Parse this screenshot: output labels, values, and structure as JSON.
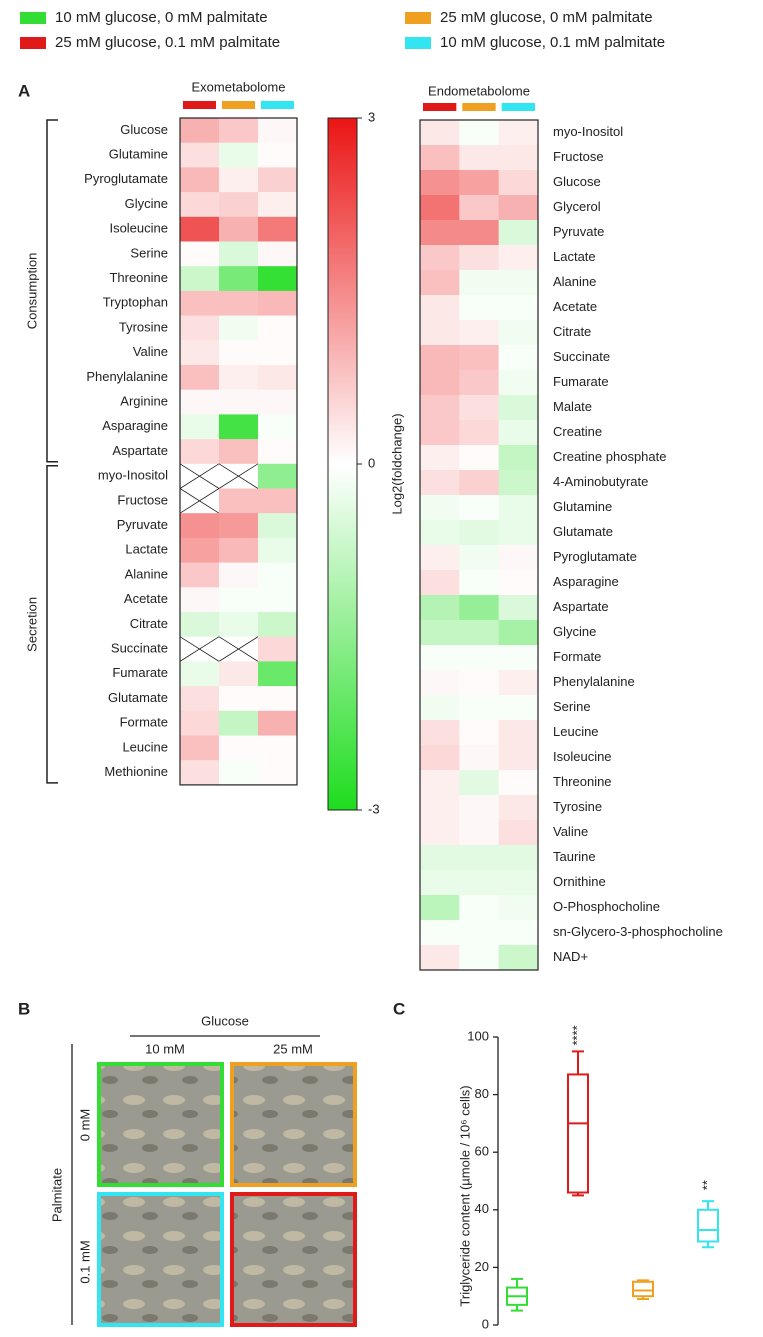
{
  "legend": [
    {
      "name": "10 mM glucose, 0 mM palmitate",
      "color": "#33dd33"
    },
    {
      "name": "25 mM glucose, 0.1 mM palmitate",
      "color": "#e01919"
    },
    {
      "name": "25 mM glucose, 0 mM palmitate",
      "color": "#f0a020"
    },
    {
      "name": "10 mM glucose, 0.1 mM palmitate",
      "color": "#33e5f0"
    }
  ],
  "panel_labels": [
    "A",
    "B",
    "C"
  ],
  "colorbar": {
    "label": "Log2(foldchange)",
    "lim": [
      -3,
      3
    ],
    "ticks": [
      3,
      0,
      -3
    ]
  },
  "chart_data": [
    {
      "type": "heatmap",
      "title": "Exometabolome",
      "column_colors": [
        "#e01919",
        "#f0a020",
        "#33e5f0"
      ],
      "groups": [
        {
          "name": "Consumption",
          "rows": [
            "Glucose",
            "Glutamine",
            "Pyroglutamate",
            "Glycine",
            "Isoleucine",
            "Serine",
            "Threonine",
            "Tryptophan",
            "Tyrosine",
            "Valine",
            "Phenylalanine",
            "Arginine",
            "Asparagine",
            "Aspartate"
          ],
          "values": [
            [
              1.0,
              0.7,
              0.1
            ],
            [
              0.4,
              -0.3,
              0.05
            ],
            [
              0.9,
              0.2,
              0.6
            ],
            [
              0.5,
              0.6,
              0.2
            ],
            [
              2.2,
              1.0,
              1.7
            ],
            [
              0.05,
              -0.5,
              0.1
            ],
            [
              -0.7,
              -1.8,
              -2.7
            ],
            [
              0.8,
              0.8,
              0.9
            ],
            [
              0.4,
              -0.2,
              0.05
            ],
            [
              0.3,
              0.05,
              0.05
            ],
            [
              0.8,
              0.2,
              0.3
            ],
            [
              0.1,
              0.1,
              0.1
            ],
            [
              -0.3,
              -2.5,
              -0.1
            ],
            [
              0.5,
              0.8,
              0.05
            ]
          ]
        },
        {
          "name": "Secretion",
          "rows": [
            "myo-Inositol",
            "Fructose",
            "Pyruvate",
            "Lactate",
            "Alanine",
            "Acetate",
            "Citrate",
            "Succinate",
            "Fumarate",
            "Glutamate",
            "Formate",
            "Leucine",
            "Methionine"
          ],
          "values": [
            [
              null,
              null,
              -1.5
            ],
            [
              null,
              0.8,
              0.8
            ],
            [
              1.4,
              1.3,
              -0.5
            ],
            [
              1.2,
              0.9,
              -0.3
            ],
            [
              0.7,
              0.1,
              -0.1
            ],
            [
              0.1,
              -0.1,
              -0.1
            ],
            [
              -0.5,
              -0.3,
              -0.7
            ],
            [
              null,
              null,
              0.5
            ],
            [
              -0.3,
              0.3,
              -2.0
            ],
            [
              0.4,
              0.05,
              0.05
            ],
            [
              0.5,
              -0.8,
              1.0
            ],
            [
              0.8,
              0.05,
              0.05
            ],
            [
              0.4,
              -0.1,
              0.05
            ]
          ]
        }
      ]
    },
    {
      "type": "heatmap",
      "title": "Endometabolome",
      "column_colors": [
        "#e01919",
        "#f0a020",
        "#33e5f0"
      ],
      "groups": [
        {
          "rows": [
            "myo-Inositol",
            "Fructose",
            "Glucose",
            "Glycerol",
            "Pyruvate",
            "Lactate",
            "Alanine",
            "Acetate",
            "Citrate",
            "Succinate",
            "Fumarate",
            "Malate",
            "Creatine",
            "Creatine phosphate",
            "4-Aminobutyrate",
            "Glutamine",
            "Glutamate",
            "Pyroglutamate",
            "Asparagine",
            "Aspartate",
            "Glycine",
            "Formate",
            "Phenylalanine",
            "Serine",
            "Leucine",
            "Isoleucine",
            "Threonine",
            "Tyrosine",
            "Valine",
            "Taurine",
            "Ornithine",
            "O-Phosphocholine",
            "sn-Glycero-3-phosphocholine",
            "NAD+"
          ],
          "values": [
            [
              0.3,
              -0.1,
              0.2
            ],
            [
              0.8,
              0.3,
              0.3
            ],
            [
              1.4,
              1.2,
              0.5
            ],
            [
              1.8,
              0.7,
              1.0
            ],
            [
              1.5,
              1.5,
              -0.5
            ],
            [
              0.7,
              0.4,
              0.2
            ],
            [
              0.8,
              -0.2,
              -0.2
            ],
            [
              0.3,
              -0.1,
              -0.1
            ],
            [
              0.3,
              0.2,
              -0.2
            ],
            [
              0.9,
              0.8,
              -0.1
            ],
            [
              0.9,
              0.7,
              -0.2
            ],
            [
              0.7,
              0.4,
              -0.5
            ],
            [
              0.7,
              0.5,
              -0.3
            ],
            [
              0.2,
              0.05,
              -0.8
            ],
            [
              0.4,
              0.6,
              -0.7
            ],
            [
              -0.2,
              -0.1,
              -0.3
            ],
            [
              -0.3,
              -0.4,
              -0.3
            ],
            [
              0.2,
              -0.2,
              0.1
            ],
            [
              0.4,
              -0.1,
              0.05
            ],
            [
              -1.0,
              -1.4,
              -0.5
            ],
            [
              -0.8,
              -0.8,
              -1.2
            ],
            [
              -0.1,
              -0.1,
              -0.1
            ],
            [
              0.1,
              0.05,
              0.2
            ],
            [
              -0.2,
              -0.1,
              -0.1
            ],
            [
              0.4,
              0.05,
              0.3
            ],
            [
              0.5,
              0.1,
              0.3
            ],
            [
              0.2,
              -0.4,
              0.05
            ],
            [
              0.2,
              0.1,
              0.3
            ],
            [
              0.2,
              0.1,
              0.4
            ],
            [
              -0.4,
              -0.4,
              -0.4
            ],
            [
              -0.3,
              -0.3,
              -0.3
            ],
            [
              -0.9,
              -0.1,
              -0.2
            ],
            [
              -0.1,
              -0.1,
              -0.1
            ],
            [
              0.3,
              -0.1,
              -0.7
            ]
          ]
        }
      ]
    },
    {
      "type": "box",
      "ylabel": "Triglyceride content (µmole / 10⁶ cells)",
      "ylim": [
        0,
        100
      ],
      "yticks": [
        0,
        20,
        40,
        60,
        80,
        100
      ],
      "series": [
        {
          "color": "#33dd33",
          "min": 5,
          "q1": 7,
          "median": 10,
          "q3": 13,
          "max": 16
        },
        {
          "color": "#e01919",
          "min": 45,
          "q1": 46,
          "median": 70,
          "q3": 87,
          "max": 95,
          "annotation": "****"
        },
        {
          "color": "#f0a020",
          "min": 9,
          "q1": 10,
          "median": 12,
          "q3": 15,
          "max": 15.5
        },
        {
          "color": "#33e5f0",
          "min": 27,
          "q1": 29,
          "median": 33,
          "q3": 40,
          "max": 43,
          "annotation": "**"
        }
      ]
    }
  ],
  "panel_b": {
    "x_title": "Glucose",
    "x_labels": [
      "10 mM",
      "25 mM"
    ],
    "y_title": "Palmitate",
    "y_labels": [
      "0 mM",
      "0.1 mM"
    ],
    "frame_colors": [
      [
        "#33dd33",
        "#f0a020"
      ],
      [
        "#33e5f0",
        "#e01919"
      ]
    ]
  }
}
